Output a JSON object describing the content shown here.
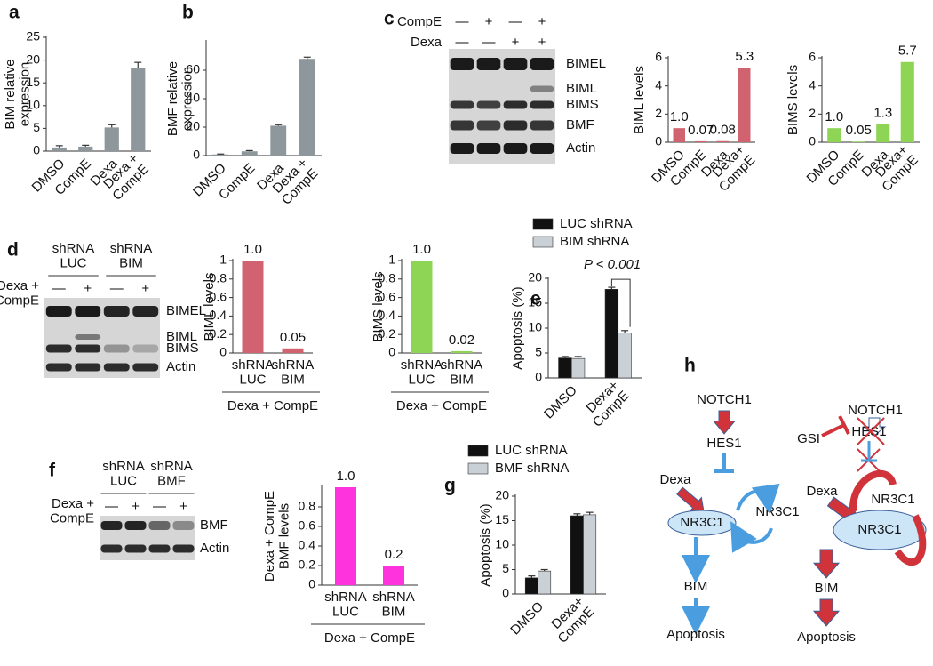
{
  "chart_data": [
    {
      "type": "bar",
      "panel": "a",
      "ylabel": "BIM relative\nexpression",
      "categories": [
        "DMSO",
        "CompE",
        "Dexa",
        "Dexa +\nCompE"
      ],
      "values": [
        0.8,
        1,
        5.2,
        18.3
      ],
      "errors": [
        0.4,
        0.3,
        0.6,
        1.2
      ],
      "color": "#8e979c",
      "ylim": [
        0,
        25
      ],
      "yticks": [
        0,
        5,
        10,
        15,
        20,
        25
      ]
    },
    {
      "type": "bar",
      "panel": "b",
      "ylabel": "BMF relative\nexpression",
      "categories": [
        "DMSO",
        "CompE",
        "Dexa",
        "Dexa +\nCompE"
      ],
      "values": [
        0.8,
        3,
        21,
        68
      ],
      "errors": [
        0.3,
        0.5,
        0.7,
        1.2
      ],
      "color": "#8e979c",
      "ylim": [
        0,
        80
      ],
      "yticks": [
        0,
        20,
        40,
        60
      ]
    },
    {
      "type": "bar",
      "panel": "c",
      "ylabel": "BIML levels",
      "categories": [
        "DMSO",
        "CompE",
        "Dexa",
        "Dexa+\nCompE"
      ],
      "values": [
        1.0,
        0.07,
        0.08,
        5.3
      ],
      "value_labels": [
        "1.0",
        "0.07",
        "0.08",
        "5.3"
      ],
      "color": "#d0636f",
      "ylim": [
        0,
        6
      ],
      "yticks": [
        0,
        2,
        4,
        6
      ]
    },
    {
      "type": "bar",
      "ylabel": "BIMS  levels",
      "categories": [
        "DMSO",
        "CompE",
        "Dexa",
        "Dexa+\nCompE"
      ],
      "values": [
        1.0,
        0.05,
        1.3,
        5.7
      ],
      "value_labels": [
        "1.0",
        "0.05",
        "1.3",
        "5.7"
      ],
      "color": "#8ed556",
      "ylim": [
        0,
        6
      ],
      "yticks": [
        0,
        2,
        4,
        6
      ]
    },
    {
      "type": "bar",
      "panel": "d",
      "ylabel": "BIML levels",
      "categories": [
        "shRNA\nLUC",
        "shRNA\nBIM"
      ],
      "group_label": "Dexa + CompE",
      "values": [
        1,
        0.05
      ],
      "value_labels": [
        "1.0",
        "0.05"
      ],
      "color": "#d0636f",
      "ylim": [
        0,
        1
      ],
      "yticks": [
        0,
        0.2,
        0.4,
        0.6,
        0.8,
        1
      ]
    },
    {
      "type": "bar",
      "ylabel": "BIMS levels",
      "categories": [
        "shRNA\nLUC",
        "shRNA\nBIM"
      ],
      "group_label": "Dexa + CompE",
      "values": [
        1,
        0.02
      ],
      "value_labels": [
        "1.0",
        "0.02"
      ],
      "color": "#8ed556",
      "ylim": [
        0,
        1
      ],
      "yticks": [
        0,
        0.2,
        0.4,
        0.6,
        0.8,
        1
      ]
    },
    {
      "type": "grouped_bar",
      "panel": "e",
      "ylabel": "Apoptosis (%)",
      "categories": [
        "DMSO",
        "Dexa+\nCompE"
      ],
      "series": [
        {
          "name": "LUC shRNA",
          "color": "#111111",
          "values": [
            4,
            17.8
          ],
          "errors": [
            0.3,
            0.4
          ]
        },
        {
          "name": "BIM shRNA",
          "color": "#c9d0d6",
          "values": [
            3.9,
            9
          ],
          "errors": [
            0.4,
            0.5
          ]
        }
      ],
      "annotation": "P < 0.001",
      "ylim": [
        0,
        20
      ],
      "yticks": [
        0,
        5,
        10,
        15,
        20
      ]
    },
    {
      "type": "bar",
      "panel": "f",
      "ylabel": "Dexa + CompE\nBMF levels",
      "categories": [
        "shRNA\nLUC",
        "shRNA\nBIM"
      ],
      "group_label": "Dexa + CompE",
      "values": [
        1,
        0.2
      ],
      "value_labels": [
        "1.0",
        "0.2"
      ],
      "color": "#ff33dd",
      "ylim": [
        0,
        1
      ],
      "yticks": [
        0,
        0.2,
        0.4,
        0.6,
        0.8
      ]
    },
    {
      "type": "grouped_bar",
      "panel": "g",
      "ylabel": "Apoptosis (%)",
      "categories": [
        "DMSO",
        "Dexa+\nCompE"
      ],
      "series": [
        {
          "name": "LUC shRNA",
          "color": "#111111",
          "values": [
            3.3,
            16
          ],
          "errors": [
            0.4,
            0.4
          ]
        },
        {
          "name": "BMF shRNA",
          "color": "#c9d0d6",
          "values": [
            4.7,
            16.2
          ],
          "errors": [
            0.3,
            0.5
          ]
        }
      ],
      "ylim": [
        0,
        20
      ],
      "yticks": [
        0,
        5,
        10,
        15,
        20
      ]
    }
  ],
  "blots": [
    {
      "rows": [
        {
          "label": "CompE",
          "signs": [
            "—",
            "+",
            "—",
            "+"
          ]
        },
        {
          "label": "Dexa",
          "signs": [
            "—",
            "—",
            "+",
            "+"
          ]
        }
      ],
      "bands": [
        "BIMEL",
        "BIML",
        "BIMS",
        "BMF",
        "Actin"
      ]
    },
    {
      "header": [
        "shRNA\nLUC",
        "shRNA\nBIM"
      ],
      "treatment": "Dexa +\nCompE",
      "signs": [
        "—",
        "+",
        "—",
        "+"
      ],
      "bands": [
        "BIMEL",
        "BIML",
        "BIMS",
        "Actin"
      ]
    },
    {
      "header": [
        "shRNA\nLUC",
        "shRNA\nBMF"
      ],
      "treatment": "Dexa +\nCompE",
      "signs": [
        "—",
        "+",
        "—",
        "+"
      ],
      "bands": [
        "BMF",
        "Actin"
      ]
    }
  ],
  "diagram": {
    "panel": "h",
    "left": [
      "NOTCH1",
      "HES1",
      "Dexa",
      "NR3C1",
      "NR3C1",
      "BIM",
      "Apoptosis"
    ],
    "right": [
      "GSI",
      "NOTCH1",
      "HES1",
      "Dexa",
      "NR3C1",
      "NR3C1",
      "BIM",
      "Apoptosis"
    ]
  }
}
